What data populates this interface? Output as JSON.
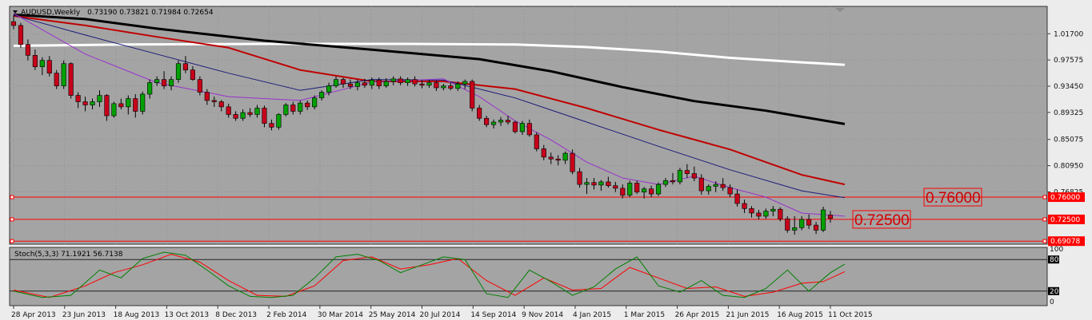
{
  "chart_data": {
    "type": "candlestick",
    "title": "AUDUSD,Weekly",
    "ohlc_text": "0.73190 0.73821 0.71984 0.72654",
    "price_axis": {
      "ylim": [
        0.686,
        1.06
      ],
      "ticks": [
        "1.01700",
        "0.97575",
        "0.93450",
        "0.89325",
        "0.85075",
        "0.80950",
        "0.76825"
      ]
    },
    "x_labels": [
      "28 Apr 2013",
      "23 Jun 2013",
      "18 Aug 2013",
      "13 Oct 2013",
      "8 Dec 2013",
      "2 Feb 2014",
      "30 Mar 2014",
      "25 May 2014",
      "20 Jul 2014",
      "14 Sep 2014",
      "9 Nov 2014",
      "4 Jan 2015",
      "1 Mar 2015",
      "26 Apr 2015",
      "21 Jun 2015",
      "16 Aug 2015",
      "11 Oct 2015"
    ],
    "candles": [
      [
        1.036,
        1.046,
        1.024,
        1.03
      ],
      [
        1.03,
        1.034,
        0.995,
        1.0
      ],
      [
        1.0,
        1.008,
        0.975,
        0.983
      ],
      [
        0.983,
        0.992,
        0.96,
        0.965
      ],
      [
        0.965,
        0.98,
        0.952,
        0.975
      ],
      [
        0.975,
        0.982,
        0.95,
        0.955
      ],
      [
        0.955,
        0.96,
        0.93,
        0.935
      ],
      [
        0.935,
        0.975,
        0.93,
        0.97
      ],
      [
        0.97,
        0.972,
        0.915,
        0.92
      ],
      [
        0.92,
        0.925,
        0.9,
        0.91
      ],
      [
        0.91,
        0.918,
        0.895,
        0.905
      ],
      [
        0.905,
        0.915,
        0.898,
        0.91
      ],
      [
        0.91,
        0.928,
        0.902,
        0.92
      ],
      [
        0.92,
        0.922,
        0.88,
        0.888
      ],
      [
        0.888,
        0.91,
        0.885,
        0.907
      ],
      [
        0.907,
        0.915,
        0.898,
        0.902
      ],
      [
        0.902,
        0.92,
        0.89,
        0.915
      ],
      [
        0.915,
        0.922,
        0.885,
        0.895
      ],
      [
        0.895,
        0.926,
        0.89,
        0.922
      ],
      [
        0.922,
        0.945,
        0.915,
        0.94
      ],
      [
        0.94,
        0.95,
        0.935,
        0.945
      ],
      [
        0.945,
        0.958,
        0.93,
        0.935
      ],
      [
        0.935,
        0.95,
        0.928,
        0.945
      ],
      [
        0.945,
        0.975,
        0.94,
        0.97
      ],
      [
        0.97,
        0.982,
        0.955,
        0.96
      ],
      [
        0.96,
        0.966,
        0.943,
        0.945
      ],
      [
        0.945,
        0.95,
        0.92,
        0.925
      ],
      [
        0.925,
        0.93,
        0.905,
        0.912
      ],
      [
        0.912,
        0.918,
        0.902,
        0.91
      ],
      [
        0.91,
        0.913,
        0.895,
        0.902
      ],
      [
        0.902,
        0.907,
        0.885,
        0.89
      ],
      [
        0.89,
        0.895,
        0.88,
        0.884
      ],
      [
        0.884,
        0.898,
        0.88,
        0.893
      ],
      [
        0.893,
        0.9,
        0.886,
        0.89
      ],
      [
        0.89,
        0.905,
        0.885,
        0.9
      ],
      [
        0.9,
        0.904,
        0.87,
        0.876
      ],
      [
        0.876,
        0.882,
        0.865,
        0.87
      ],
      [
        0.87,
        0.892,
        0.866,
        0.89
      ],
      [
        0.89,
        0.908,
        0.887,
        0.905
      ],
      [
        0.905,
        0.91,
        0.89,
        0.895
      ],
      [
        0.895,
        0.912,
        0.89,
        0.908
      ],
      [
        0.908,
        0.912,
        0.897,
        0.902
      ],
      [
        0.902,
        0.92,
        0.898,
        0.916
      ],
      [
        0.916,
        0.928,
        0.912,
        0.925
      ],
      [
        0.925,
        0.94,
        0.92,
        0.935
      ],
      [
        0.935,
        0.95,
        0.932,
        0.945
      ],
      [
        0.945,
        0.948,
        0.932,
        0.938
      ],
      [
        0.938,
        0.945,
        0.93,
        0.934
      ],
      [
        0.934,
        0.945,
        0.928,
        0.94
      ],
      [
        0.94,
        0.946,
        0.932,
        0.936
      ],
      [
        0.936,
        0.948,
        0.93,
        0.944
      ],
      [
        0.944,
        0.948,
        0.93,
        0.935
      ],
      [
        0.935,
        0.947,
        0.932,
        0.942
      ],
      [
        0.942,
        0.95,
        0.936,
        0.946
      ],
      [
        0.946,
        0.95,
        0.936,
        0.94
      ],
      [
        0.94,
        0.948,
        0.935,
        0.945
      ],
      [
        0.945,
        0.95,
        0.934,
        0.938
      ],
      [
        0.938,
        0.944,
        0.931,
        0.936
      ],
      [
        0.936,
        0.944,
        0.932,
        0.94
      ],
      [
        0.94,
        0.943,
        0.927,
        0.932
      ],
      [
        0.932,
        0.938,
        0.928,
        0.935
      ],
      [
        0.935,
        0.94,
        0.928,
        0.931
      ],
      [
        0.931,
        0.942,
        0.927,
        0.938
      ],
      [
        0.938,
        0.945,
        0.93,
        0.942
      ],
      [
        0.942,
        0.945,
        0.895,
        0.9
      ],
      [
        0.9,
        0.905,
        0.88,
        0.884
      ],
      [
        0.884,
        0.888,
        0.87,
        0.874
      ],
      [
        0.874,
        0.882,
        0.868,
        0.878
      ],
      [
        0.878,
        0.886,
        0.872,
        0.881
      ],
      [
        0.881,
        0.888,
        0.874,
        0.878
      ],
      [
        0.878,
        0.88,
        0.86,
        0.863
      ],
      [
        0.863,
        0.88,
        0.858,
        0.876
      ],
      [
        0.876,
        0.882,
        0.855,
        0.858
      ],
      [
        0.858,
        0.862,
        0.832,
        0.836
      ],
      [
        0.836,
        0.842,
        0.818,
        0.823
      ],
      [
        0.823,
        0.83,
        0.812,
        0.82
      ],
      [
        0.82,
        0.826,
        0.81,
        0.818
      ],
      [
        0.818,
        0.832,
        0.812,
        0.829
      ],
      [
        0.829,
        0.835,
        0.796,
        0.8
      ],
      [
        0.8,
        0.806,
        0.775,
        0.78
      ],
      [
        0.78,
        0.79,
        0.765,
        0.783
      ],
      [
        0.783,
        0.79,
        0.772,
        0.779
      ],
      [
        0.779,
        0.787,
        0.77,
        0.784
      ],
      [
        0.784,
        0.792,
        0.775,
        0.778
      ],
      [
        0.778,
        0.784,
        0.768,
        0.774
      ],
      [
        0.774,
        0.78,
        0.758,
        0.763
      ],
      [
        0.763,
        0.786,
        0.76,
        0.782
      ],
      [
        0.782,
        0.786,
        0.765,
        0.768
      ],
      [
        0.768,
        0.776,
        0.758,
        0.773
      ],
      [
        0.773,
        0.778,
        0.76,
        0.765
      ],
      [
        0.765,
        0.783,
        0.762,
        0.78
      ],
      [
        0.78,
        0.79,
        0.776,
        0.786
      ],
      [
        0.786,
        0.798,
        0.78,
        0.784
      ],
      [
        0.784,
        0.806,
        0.78,
        0.802
      ],
      [
        0.802,
        0.812,
        0.79,
        0.797
      ],
      [
        0.797,
        0.808,
        0.785,
        0.79
      ],
      [
        0.79,
        0.796,
        0.764,
        0.77
      ],
      [
        0.77,
        0.78,
        0.764,
        0.777
      ],
      [
        0.777,
        0.785,
        0.768,
        0.78
      ],
      [
        0.78,
        0.79,
        0.77,
        0.775
      ],
      [
        0.775,
        0.78,
        0.76,
        0.765
      ],
      [
        0.765,
        0.772,
        0.745,
        0.75
      ],
      [
        0.75,
        0.756,
        0.735,
        0.742
      ],
      [
        0.742,
        0.746,
        0.728,
        0.735
      ],
      [
        0.735,
        0.74,
        0.725,
        0.73
      ],
      [
        0.73,
        0.742,
        0.726,
        0.738
      ],
      [
        0.738,
        0.746,
        0.73,
        0.741
      ],
      [
        0.741,
        0.744,
        0.722,
        0.726
      ],
      [
        0.726,
        0.73,
        0.704,
        0.708
      ],
      [
        0.708,
        0.73,
        0.701,
        0.712
      ],
      [
        0.712,
        0.73,
        0.708,
        0.725
      ],
      [
        0.725,
        0.733,
        0.71,
        0.716
      ],
      [
        0.716,
        0.721,
        0.702,
        0.708
      ],
      [
        0.708,
        0.745,
        0.705,
        0.74
      ],
      [
        0.7319,
        0.73821,
        0.71984,
        0.72654
      ]
    ],
    "moving_averages": [
      {
        "color": "#ffffff",
        "values": [
          [
            0,
            0.998
          ],
          [
            15,
            1.0
          ],
          [
            35,
            1.001
          ],
          [
            55,
            1.001
          ],
          [
            70,
            1.0
          ],
          [
            80,
            0.996
          ],
          [
            90,
            0.989
          ],
          [
            100,
            0.979
          ],
          [
            110,
            0.972
          ],
          [
            116,
            0.968
          ]
        ]
      },
      {
        "color": "#000000",
        "values": [
          [
            0,
            1.047
          ],
          [
            10,
            1.04
          ],
          [
            20,
            1.025
          ],
          [
            35,
            1.006
          ],
          [
            50,
            0.992
          ],
          [
            65,
            0.977
          ],
          [
            75,
            0.958
          ],
          [
            85,
            0.933
          ],
          [
            95,
            0.911
          ],
          [
            105,
            0.896
          ],
          [
            116,
            0.875
          ]
        ]
      },
      {
        "color": "#c00000",
        "values": [
          [
            0,
            1.045
          ],
          [
            10,
            1.03
          ],
          [
            20,
            1.012
          ],
          [
            30,
            0.995
          ],
          [
            40,
            0.96
          ],
          [
            50,
            0.942
          ],
          [
            60,
            0.942
          ],
          [
            70,
            0.93
          ],
          [
            80,
            0.9
          ],
          [
            90,
            0.866
          ],
          [
            100,
            0.835
          ],
          [
            110,
            0.795
          ],
          [
            116,
            0.78
          ]
        ]
      },
      {
        "color": "#1a1a7a",
        "values": [
          [
            0,
            1.046
          ],
          [
            10,
            1.015
          ],
          [
            20,
            0.985
          ],
          [
            30,
            0.955
          ],
          [
            40,
            0.928
          ],
          [
            50,
            0.945
          ],
          [
            60,
            0.944
          ],
          [
            70,
            0.916
          ],
          [
            80,
            0.878
          ],
          [
            90,
            0.84
          ],
          [
            100,
            0.803
          ],
          [
            110,
            0.77
          ],
          [
            116,
            0.759
          ]
        ]
      },
      {
        "color": "#9932cc",
        "values": [
          [
            0,
            1.049
          ],
          [
            10,
            0.985
          ],
          [
            20,
            0.94
          ],
          [
            30,
            0.918
          ],
          [
            40,
            0.912
          ],
          [
            50,
            0.941
          ],
          [
            60,
            0.946
          ],
          [
            65,
            0.918
          ],
          [
            70,
            0.88
          ],
          [
            75,
            0.85
          ],
          [
            80,
            0.815
          ],
          [
            85,
            0.79
          ],
          [
            90,
            0.78
          ],
          [
            95,
            0.793
          ],
          [
            100,
            0.775
          ],
          [
            105,
            0.76
          ],
          [
            110,
            0.735
          ],
          [
            116,
            0.73
          ]
        ]
      }
    ],
    "levels": [
      {
        "price": 0.76,
        "axis_tag": "0.76000",
        "big_label": "0.76000"
      },
      {
        "price": 0.725,
        "axis_tag": "0.72500",
        "big_label": "0.72500"
      },
      {
        "price": 0.69078,
        "axis_tag": "0.69078",
        "big_label": ""
      }
    ],
    "stochastic": {
      "label": "Stoch(5,3,3) 71.1921 56.7138",
      "ylim": [
        0,
        100
      ],
      "ticks_top": [
        "100",
        "80"
      ],
      "ticks_bottom": [
        "20",
        "0"
      ],
      "levels": [
        80,
        20
      ],
      "main_color": "#008000",
      "signal_color": "#ff0000",
      "main": [
        [
          0,
          20
        ],
        [
          4,
          8
        ],
        [
          8,
          12
        ],
        [
          12,
          60
        ],
        [
          15,
          45
        ],
        [
          18,
          82
        ],
        [
          21,
          94
        ],
        [
          24,
          88
        ],
        [
          27,
          60
        ],
        [
          30,
          30
        ],
        [
          33,
          10
        ],
        [
          36,
          8
        ],
        [
          39,
          12
        ],
        [
          42,
          45
        ],
        [
          45,
          85
        ],
        [
          48,
          90
        ],
        [
          51,
          78
        ],
        [
          54,
          55
        ],
        [
          57,
          70
        ],
        [
          60,
          85
        ],
        [
          63,
          80
        ],
        [
          66,
          15
        ],
        [
          69,
          8
        ],
        [
          72,
          60
        ],
        [
          75,
          38
        ],
        [
          78,
          12
        ],
        [
          81,
          28
        ],
        [
          84,
          62
        ],
        [
          87,
          85
        ],
        [
          90,
          30
        ],
        [
          93,
          18
        ],
        [
          96,
          40
        ],
        [
          99,
          12
        ],
        [
          102,
          8
        ],
        [
          105,
          25
        ],
        [
          108,
          60
        ],
        [
          111,
          20
        ],
        [
          114,
          55
        ],
        [
          116,
          71
        ]
      ],
      "signal": [
        [
          0,
          22
        ],
        [
          5,
          8
        ],
        [
          10,
          30
        ],
        [
          14,
          55
        ],
        [
          18,
          70
        ],
        [
          22,
          90
        ],
        [
          26,
          75
        ],
        [
          30,
          40
        ],
        [
          34,
          12
        ],
        [
          38,
          10
        ],
        [
          42,
          30
        ],
        [
          46,
          78
        ],
        [
          50,
          85
        ],
        [
          54,
          62
        ],
        [
          58,
          70
        ],
        [
          62,
          82
        ],
        [
          66,
          40
        ],
        [
          70,
          12
        ],
        [
          74,
          45
        ],
        [
          78,
          22
        ],
        [
          82,
          25
        ],
        [
          86,
          65
        ],
        [
          90,
          45
        ],
        [
          94,
          25
        ],
        [
          98,
          28
        ],
        [
          102,
          10
        ],
        [
          106,
          18
        ],
        [
          110,
          35
        ],
        [
          113,
          38
        ],
        [
          116,
          57
        ]
      ]
    },
    "colors": {
      "bull_candle": "#00a000",
      "bear_candle": "#c8001a",
      "wick": "#000000",
      "grid": "#999999",
      "level_line": "#ff0000",
      "pane_bg": "#a4a4a4",
      "panel_bg": "#ececec"
    }
  }
}
